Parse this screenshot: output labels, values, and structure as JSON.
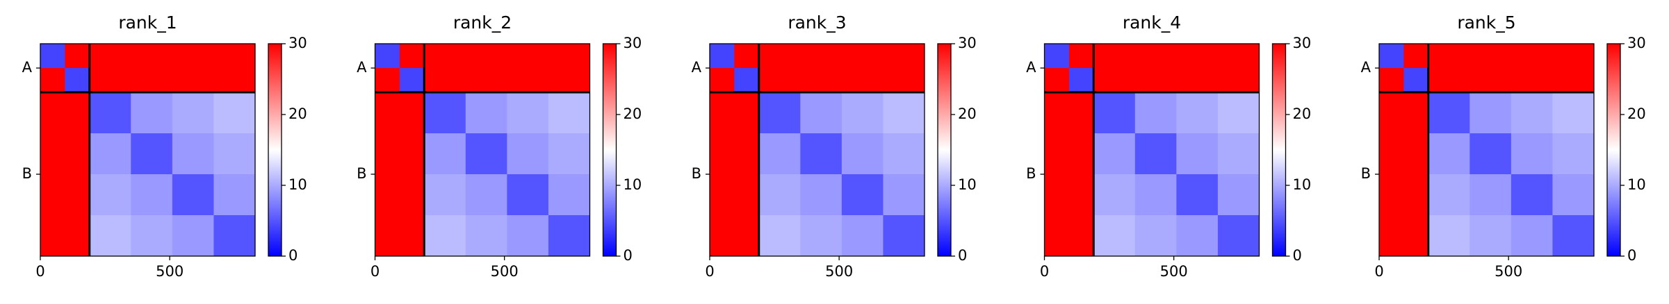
{
  "chart_data": [
    {
      "type": "heatmap",
      "title": "rank_1",
      "edges": [
        0,
        95,
        190,
        350,
        510,
        670,
        830
      ],
      "matrix": [
        [
          4,
          30,
          30,
          30,
          30,
          30
        ],
        [
          30,
          4,
          30,
          30,
          30,
          30
        ],
        [
          30,
          30,
          5,
          9,
          10,
          11
        ],
        [
          30,
          30,
          9,
          5,
          9,
          10
        ],
        [
          30,
          30,
          10,
          9,
          5,
          9
        ],
        [
          30,
          30,
          11,
          10,
          9,
          5
        ]
      ],
      "chain_breaks": [
        190
      ],
      "xlim": [
        0,
        830
      ],
      "ylim": [
        830,
        0
      ],
      "xticks": [
        0,
        500
      ],
      "yticks": [
        {
          "value": 95,
          "label": "A"
        },
        {
          "value": 510,
          "label": "B"
        }
      ],
      "clim": [
        0,
        30
      ],
      "cticks": [
        0,
        10,
        20,
        30
      ],
      "cmap": [
        "#0000ff",
        "#ffffff",
        "#ff0000"
      ]
    },
    {
      "type": "heatmap",
      "title": "rank_2",
      "edges": [
        0,
        95,
        190,
        350,
        510,
        670,
        830
      ],
      "matrix": [
        [
          4,
          30,
          30,
          30,
          30,
          30
        ],
        [
          30,
          4,
          30,
          30,
          30,
          30
        ],
        [
          30,
          30,
          5,
          9,
          10,
          11
        ],
        [
          30,
          30,
          9,
          5,
          9,
          10
        ],
        [
          30,
          30,
          10,
          9,
          5,
          9
        ],
        [
          30,
          30,
          11,
          10,
          9,
          5
        ]
      ],
      "chain_breaks": [
        190
      ],
      "xlim": [
        0,
        830
      ],
      "ylim": [
        830,
        0
      ],
      "xticks": [
        0,
        500
      ],
      "yticks": [
        {
          "value": 95,
          "label": "A"
        },
        {
          "value": 510,
          "label": "B"
        }
      ],
      "clim": [
        0,
        30
      ],
      "cticks": [
        0,
        10,
        20,
        30
      ],
      "cmap": [
        "#0000ff",
        "#ffffff",
        "#ff0000"
      ]
    },
    {
      "type": "heatmap",
      "title": "rank_3",
      "edges": [
        0,
        95,
        190,
        350,
        510,
        670,
        830
      ],
      "matrix": [
        [
          4,
          30,
          30,
          30,
          30,
          30
        ],
        [
          30,
          4,
          30,
          30,
          30,
          30
        ],
        [
          30,
          30,
          5,
          9,
          10,
          11
        ],
        [
          30,
          30,
          9,
          5,
          9,
          10
        ],
        [
          30,
          30,
          10,
          9,
          5,
          9
        ],
        [
          30,
          30,
          11,
          10,
          9,
          5
        ]
      ],
      "chain_breaks": [
        190
      ],
      "xlim": [
        0,
        830
      ],
      "ylim": [
        830,
        0
      ],
      "xticks": [
        0,
        500
      ],
      "yticks": [
        {
          "value": 95,
          "label": "A"
        },
        {
          "value": 510,
          "label": "B"
        }
      ],
      "clim": [
        0,
        30
      ],
      "cticks": [
        0,
        10,
        20,
        30
      ],
      "cmap": [
        "#0000ff",
        "#ffffff",
        "#ff0000"
      ]
    },
    {
      "type": "heatmap",
      "title": "rank_4",
      "edges": [
        0,
        95,
        190,
        350,
        510,
        670,
        830
      ],
      "matrix": [
        [
          4,
          30,
          30,
          30,
          30,
          30
        ],
        [
          30,
          4,
          30,
          30,
          30,
          30
        ],
        [
          30,
          30,
          5,
          9,
          10,
          11
        ],
        [
          30,
          30,
          9,
          5,
          9,
          10
        ],
        [
          30,
          30,
          10,
          9,
          5,
          9
        ],
        [
          30,
          30,
          11,
          10,
          9,
          5
        ]
      ],
      "chain_breaks": [
        190
      ],
      "xlim": [
        0,
        830
      ],
      "ylim": [
        830,
        0
      ],
      "xticks": [
        0,
        500
      ],
      "yticks": [
        {
          "value": 95,
          "label": "A"
        },
        {
          "value": 510,
          "label": "B"
        }
      ],
      "clim": [
        0,
        30
      ],
      "cticks": [
        0,
        10,
        20,
        30
      ],
      "cmap": [
        "#0000ff",
        "#ffffff",
        "#ff0000"
      ]
    },
    {
      "type": "heatmap",
      "title": "rank_5",
      "edges": [
        0,
        95,
        190,
        350,
        510,
        670,
        830
      ],
      "matrix": [
        [
          4,
          30,
          30,
          30,
          30,
          30
        ],
        [
          30,
          4,
          30,
          30,
          30,
          30
        ],
        [
          30,
          30,
          5,
          9,
          10,
          11
        ],
        [
          30,
          30,
          9,
          5,
          9,
          10
        ],
        [
          30,
          30,
          10,
          9,
          5,
          9
        ],
        [
          30,
          30,
          11,
          10,
          9,
          5
        ]
      ],
      "chain_breaks": [
        190
      ],
      "xlim": [
        0,
        830
      ],
      "ylim": [
        830,
        0
      ],
      "xticks": [
        0,
        500
      ],
      "yticks": [
        {
          "value": 95,
          "label": "A"
        },
        {
          "value": 510,
          "label": "B"
        }
      ],
      "clim": [
        0,
        30
      ],
      "cticks": [
        0,
        10,
        20,
        30
      ],
      "cmap": [
        "#0000ff",
        "#ffffff",
        "#ff0000"
      ]
    }
  ]
}
